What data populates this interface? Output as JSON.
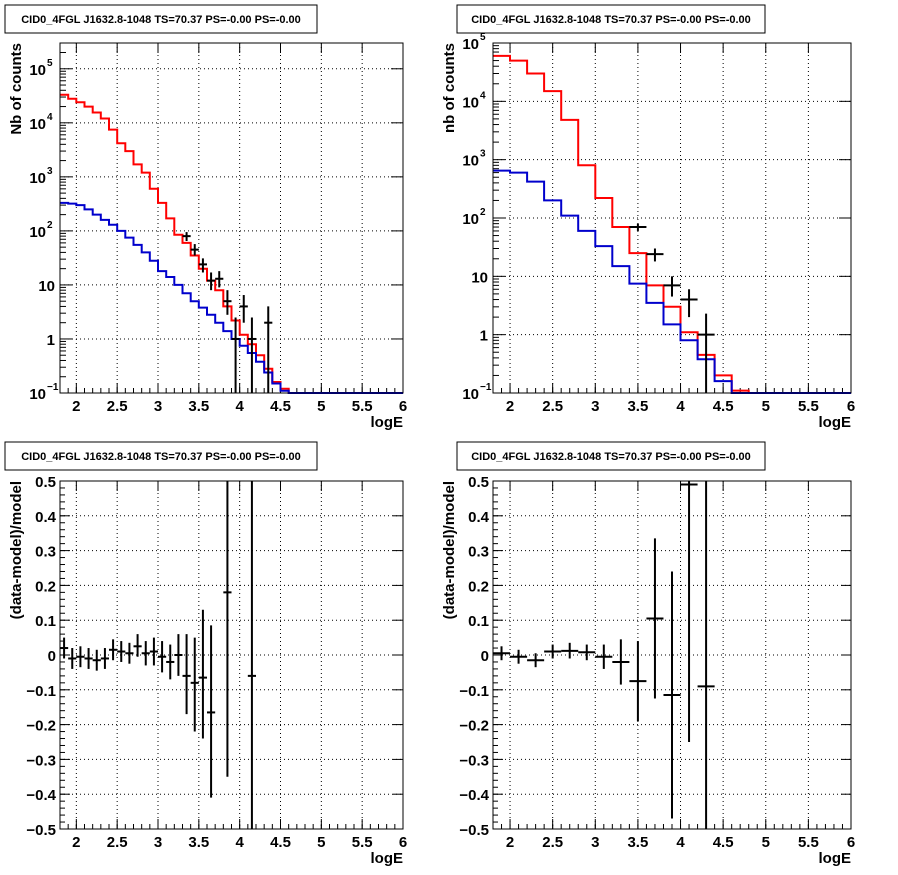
{
  "colors": {
    "data": "#000000",
    "total_model": "#ff0000",
    "source_model": "#0000cc",
    "grid": "#000000"
  },
  "chart_data": [
    {
      "type": "line",
      "title": "CID0_4FGL J1632.8-1048 TS=70.37 PS=-0.00 PS=-0.00",
      "xlabel": "logE",
      "ylabel": "Nb of counts",
      "xlim": [
        1.8,
        6
      ],
      "ylim": [
        0.1,
        300000
      ],
      "yscale": "log",
      "grid": true,
      "xticks": [
        "2",
        "2.5",
        "3",
        "3.5",
        "4",
        "4.5",
        "5",
        "5.5",
        "6"
      ],
      "yticks": [
        {
          "v": 0.1,
          "base": "10",
          "exp": "−1"
        },
        {
          "v": 1,
          "base": "1",
          "exp": ""
        },
        {
          "v": 10,
          "base": "10",
          "exp": ""
        },
        {
          "v": 100,
          "base": "10",
          "exp": "2"
        },
        {
          "v": 1000,
          "base": "10",
          "exp": "3"
        },
        {
          "v": 10000,
          "base": "10",
          "exp": "4"
        },
        {
          "v": 100000,
          "base": "10",
          "exp": "5"
        }
      ],
      "series": [
        {
          "role": "total_model",
          "style": "step",
          "edges": [
            1.8,
            1.9,
            2.0,
            2.1,
            2.2,
            2.3,
            2.4,
            2.5,
            2.6,
            2.7,
            2.8,
            2.9,
            3.0,
            3.1,
            3.2,
            3.3,
            3.4,
            3.5,
            3.6,
            3.7,
            3.8,
            3.9,
            4.0,
            4.1,
            4.2,
            4.3,
            4.4,
            4.5,
            4.6,
            4.7,
            4.8,
            4.9,
            5.0,
            5.1,
            5.2,
            5.3,
            5.4,
            5.5,
            5.6,
            5.7,
            5.8,
            5.9,
            6.0
          ],
          "values": [
            33000,
            28000,
            24000,
            20000,
            15500,
            12000,
            7500,
            4200,
            3000,
            1700,
            1200,
            600,
            330,
            170,
            85,
            60,
            35,
            20,
            12,
            8,
            4,
            2.2,
            1.2,
            0.8,
            0.5,
            0.28,
            0.16,
            0.12,
            0.1,
            0.1,
            0.1,
            0.1,
            0.1,
            0.1,
            0.1,
            0.1,
            0.1,
            0.1,
            0.1,
            0.1,
            0.1,
            0.1
          ]
        },
        {
          "role": "source_model",
          "style": "step",
          "edges": [
            1.8,
            1.9,
            2.0,
            2.1,
            2.2,
            2.3,
            2.4,
            2.5,
            2.6,
            2.7,
            2.8,
            2.9,
            3.0,
            3.1,
            3.2,
            3.3,
            3.4,
            3.5,
            3.6,
            3.7,
            3.8,
            3.9,
            4.0,
            4.1,
            4.2,
            4.3,
            4.4,
            4.5,
            4.6,
            4.7,
            4.8,
            4.9,
            5.0,
            5.1,
            5.2,
            5.3,
            5.4,
            5.5,
            5.6,
            5.7,
            5.8,
            5.9,
            6.0
          ],
          "values": [
            330,
            320,
            300,
            250,
            200,
            160,
            130,
            100,
            75,
            55,
            40,
            28,
            18,
            14,
            10,
            7,
            5,
            3.8,
            2.8,
            2,
            1.4,
            1,
            0.75,
            0.55,
            0.38,
            0.24,
            0.15,
            0.11,
            0.1,
            0.1,
            0.1,
            0.1,
            0.1,
            0.1,
            0.1,
            0.1,
            0.1,
            0.1,
            0.1,
            0.1,
            0.1,
            0.1
          ]
        }
      ],
      "points": [
        {
          "x": 3.35,
          "y": 80,
          "xerr": 0.05,
          "ylo": 65,
          "yhi": 95
        },
        {
          "x": 3.45,
          "y": 45,
          "xerr": 0.05,
          "ylo": 35,
          "yhi": 57
        },
        {
          "x": 3.55,
          "y": 24,
          "xerr": 0.05,
          "ylo": 17,
          "yhi": 31
        },
        {
          "x": 3.65,
          "y": 12,
          "xerr": 0.05,
          "ylo": 8,
          "yhi": 17
        },
        {
          "x": 3.75,
          "y": 13,
          "xerr": 0.05,
          "ylo": 9,
          "yhi": 18
        },
        {
          "x": 3.85,
          "y": 5,
          "xerr": 0.05,
          "ylo": 2.8,
          "yhi": 8
        },
        {
          "x": 3.95,
          "y": 1,
          "xerr": 0.05,
          "ylo": 0.1,
          "yhi": 2.5
        },
        {
          "x": 4.05,
          "y": 4,
          "xerr": 0.05,
          "ylo": 2,
          "yhi": 6.5
        },
        {
          "x": 4.15,
          "y": 1,
          "xerr": 0.05,
          "ylo": 0.1,
          "yhi": 2.5
        },
        {
          "x": 4.35,
          "y": 2,
          "xerr": 0.05,
          "ylo": 0.1,
          "yhi": 4
        }
      ]
    },
    {
      "type": "line",
      "title": "CID0_4FGL J1632.8-1048 TS=70.37 PS=-0.00 PS=-0.00",
      "xlabel": "logE",
      "ylabel": "nb of counts",
      "xlim": [
        1.8,
        6
      ],
      "ylim": [
        0.1,
        100000
      ],
      "yscale": "log",
      "grid": true,
      "xticks": [
        "2",
        "2.5",
        "3",
        "3.5",
        "4",
        "4.5",
        "5",
        "5.5",
        "6"
      ],
      "yticks": [
        {
          "v": 0.1,
          "base": "10",
          "exp": "−1"
        },
        {
          "v": 1,
          "base": "1",
          "exp": ""
        },
        {
          "v": 10,
          "base": "10",
          "exp": ""
        },
        {
          "v": 100,
          "base": "10",
          "exp": "2"
        },
        {
          "v": 1000,
          "base": "10",
          "exp": "3"
        },
        {
          "v": 10000,
          "base": "10",
          "exp": "4"
        },
        {
          "v": 100000,
          "base": "10",
          "exp": "5"
        }
      ],
      "series": [
        {
          "role": "total_model",
          "style": "step",
          "edges": [
            1.8,
            2.0,
            2.2,
            2.4,
            2.6,
            2.8,
            3.0,
            3.2,
            3.4,
            3.6,
            3.8,
            4.0,
            4.2,
            4.4,
            4.6,
            4.8,
            5.0,
            5.2,
            5.4,
            5.6,
            5.8,
            6.0
          ],
          "values": [
            60000,
            50000,
            30000,
            15000,
            4800,
            800,
            220,
            70,
            25,
            7,
            3,
            1.1,
            0.45,
            0.2,
            0.11,
            0.1,
            0.1,
            0.1,
            0.1,
            0.1,
            0.1
          ]
        },
        {
          "role": "source_model",
          "style": "step",
          "edges": [
            1.8,
            2.0,
            2.2,
            2.4,
            2.6,
            2.8,
            3.0,
            3.2,
            3.4,
            3.6,
            3.8,
            4.0,
            4.2,
            4.4,
            4.6,
            4.8,
            5.0,
            5.2,
            5.4,
            5.6,
            5.8,
            6.0
          ],
          "values": [
            650,
            600,
            420,
            200,
            110,
            60,
            33,
            15,
            7.5,
            3.5,
            1.5,
            0.8,
            0.38,
            0.16,
            0.1,
            0.1,
            0.1,
            0.1,
            0.1,
            0.1,
            0.1
          ]
        }
      ],
      "points": [
        {
          "x": 3.5,
          "y": 70,
          "xerr": 0.1,
          "ylo": 60,
          "yhi": 80
        },
        {
          "x": 3.7,
          "y": 24,
          "xerr": 0.1,
          "ylo": 18,
          "yhi": 30
        },
        {
          "x": 3.9,
          "y": 7,
          "xerr": 0.1,
          "ylo": 4.5,
          "yhi": 10
        },
        {
          "x": 4.1,
          "y": 4,
          "xerr": 0.1,
          "ylo": 2,
          "yhi": 6
        },
        {
          "x": 4.3,
          "y": 1,
          "xerr": 0.1,
          "ylo": 0.1,
          "yhi": 2.3
        }
      ]
    },
    {
      "type": "scatter",
      "title": "CID0_4FGL J1632.8-1048 TS=70.37 PS=-0.00 PS=-0.00",
      "xlabel": "logE",
      "ylabel": "(data-model)/model",
      "xlim": [
        1.8,
        6
      ],
      "ylim": [
        -0.5,
        0.5
      ],
      "yscale": "linear",
      "grid": true,
      "xticks": [
        "2",
        "2.5",
        "3",
        "3.5",
        "4",
        "4.5",
        "5",
        "5.5",
        "6"
      ],
      "ytick_labels": [
        "−0.5",
        "−0.4",
        "−0.3",
        "−0.2",
        "−0.1",
        "0",
        "0.1",
        "0.2",
        "0.3",
        "0.4",
        "0.5"
      ],
      "points": [
        {
          "x": 1.85,
          "y": 0.02,
          "xerr": 0.05,
          "ylo": -0.01,
          "yhi": 0.05
        },
        {
          "x": 1.95,
          "y": -0.01,
          "xerr": 0.05,
          "ylo": -0.04,
          "yhi": 0.02
        },
        {
          "x": 2.05,
          "y": -0.005,
          "xerr": 0.05,
          "ylo": -0.035,
          "yhi": 0.025
        },
        {
          "x": 2.15,
          "y": -0.01,
          "xerr": 0.05,
          "ylo": -0.04,
          "yhi": 0.02
        },
        {
          "x": 2.25,
          "y": -0.015,
          "xerr": 0.05,
          "ylo": -0.045,
          "yhi": 0.015
        },
        {
          "x": 2.35,
          "y": -0.01,
          "xerr": 0.05,
          "ylo": -0.04,
          "yhi": 0.02
        },
        {
          "x": 2.45,
          "y": 0.015,
          "xerr": 0.05,
          "ylo": -0.015,
          "yhi": 0.045
        },
        {
          "x": 2.55,
          "y": 0.01,
          "xerr": 0.05,
          "ylo": -0.02,
          "yhi": 0.04
        },
        {
          "x": 2.65,
          "y": 0.005,
          "xerr": 0.05,
          "ylo": -0.025,
          "yhi": 0.035
        },
        {
          "x": 2.75,
          "y": 0.025,
          "xerr": 0.05,
          "ylo": -0.005,
          "yhi": 0.06
        },
        {
          "x": 2.85,
          "y": 0.005,
          "xerr": 0.05,
          "ylo": -0.03,
          "yhi": 0.04
        },
        {
          "x": 2.95,
          "y": 0.01,
          "xerr": 0.05,
          "ylo": -0.03,
          "yhi": 0.05
        },
        {
          "x": 3.05,
          "y": -0.005,
          "xerr": 0.05,
          "ylo": -0.05,
          "yhi": 0.04
        },
        {
          "x": 3.15,
          "y": -0.02,
          "xerr": 0.05,
          "ylo": -0.07,
          "yhi": 0.03
        },
        {
          "x": 3.25,
          "y": 0.0,
          "xerr": 0.05,
          "ylo": -0.06,
          "yhi": 0.06
        },
        {
          "x": 3.35,
          "y": -0.06,
          "xerr": 0.05,
          "ylo": -0.17,
          "yhi": 0.06
        },
        {
          "x": 3.45,
          "y": -0.08,
          "xerr": 0.05,
          "ylo": -0.22,
          "yhi": 0.05
        },
        {
          "x": 3.55,
          "y": -0.065,
          "xerr": 0.05,
          "ylo": -0.24,
          "yhi": 0.13
        },
        {
          "x": 3.65,
          "y": -0.165,
          "xerr": 0.05,
          "ylo": -0.41,
          "yhi": 0.085
        },
        {
          "x": 3.85,
          "y": 0.18,
          "xerr": 0.05,
          "ylo": -0.35,
          "yhi": 0.5
        },
        {
          "x": 4.15,
          "y": -0.06,
          "xerr": 0.05,
          "ylo": -0.5,
          "yhi": 0.5
        }
      ]
    },
    {
      "type": "scatter",
      "title": "CID0_4FGL J1632.8-1048 TS=70.37 PS=-0.00 PS=-0.00",
      "xlabel": "logE",
      "ylabel": "(data-model)/model",
      "xlim": [
        1.8,
        6
      ],
      "ylim": [
        -0.5,
        0.5
      ],
      "yscale": "linear",
      "grid": true,
      "xticks": [
        "2",
        "2.5",
        "3",
        "3.5",
        "4",
        "4.5",
        "5",
        "5.5",
        "6"
      ],
      "ytick_labels": [
        "−0.5",
        "−0.4",
        "−0.3",
        "−0.2",
        "−0.1",
        "0",
        "0.1",
        "0.2",
        "0.3",
        "0.4",
        "0.5"
      ],
      "points": [
        {
          "x": 1.9,
          "y": 0.005,
          "xerr": 0.1,
          "ylo": -0.015,
          "yhi": 0.025
        },
        {
          "x": 2.1,
          "y": -0.005,
          "xerr": 0.1,
          "ylo": -0.025,
          "yhi": 0.015
        },
        {
          "x": 2.3,
          "y": -0.015,
          "xerr": 0.1,
          "ylo": -0.035,
          "yhi": 0.005
        },
        {
          "x": 2.5,
          "y": 0.01,
          "xerr": 0.1,
          "ylo": -0.01,
          "yhi": 0.03
        },
        {
          "x": 2.7,
          "y": 0.012,
          "xerr": 0.1,
          "ylo": -0.01,
          "yhi": 0.035
        },
        {
          "x": 2.9,
          "y": 0.008,
          "xerr": 0.1,
          "ylo": -0.015,
          "yhi": 0.03
        },
        {
          "x": 3.1,
          "y": -0.005,
          "xerr": 0.1,
          "ylo": -0.04,
          "yhi": 0.03
        },
        {
          "x": 3.3,
          "y": -0.02,
          "xerr": 0.1,
          "ylo": -0.085,
          "yhi": 0.045
        },
        {
          "x": 3.5,
          "y": -0.075,
          "xerr": 0.1,
          "ylo": -0.19,
          "yhi": 0.04
        },
        {
          "x": 3.7,
          "y": 0.105,
          "xerr": 0.1,
          "ylo": -0.125,
          "yhi": 0.335
        },
        {
          "x": 3.9,
          "y": -0.115,
          "xerr": 0.1,
          "ylo": -0.47,
          "yhi": 0.24
        },
        {
          "x": 4.1,
          "y": 0.49,
          "xerr": 0.1,
          "ylo": -0.25,
          "yhi": 0.5
        },
        {
          "x": 4.3,
          "y": -0.09,
          "xerr": 0.1,
          "ylo": -0.5,
          "yhi": 0.5
        }
      ]
    }
  ]
}
